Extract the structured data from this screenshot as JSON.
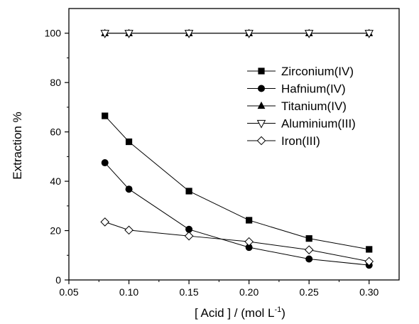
{
  "chart_data": {
    "type": "line",
    "title": "",
    "xlabel": "[ Acid ] / (mol L",
    "xlabel_sup": "-1",
    "xlabel_tail": ")",
    "ylabel": "Extraction %",
    "xlim": [
      0.05,
      0.325
    ],
    "ylim": [
      0,
      110
    ],
    "x_ticks": [
      0.05,
      0.1,
      0.15,
      0.2,
      0.25,
      0.3
    ],
    "x_tick_labels": [
      "0.05",
      "0.10",
      "0.15",
      "0.20",
      "0.25",
      "0.30"
    ],
    "y_ticks": [
      0,
      20,
      40,
      60,
      80,
      100
    ],
    "y_tick_labels": [
      "0",
      "20",
      "40",
      "60",
      "80",
      "100"
    ],
    "grid": false,
    "legend_position": "top-right",
    "series": [
      {
        "name": "Zirconium(IV)",
        "marker": "square-filled",
        "x": [
          0.08,
          0.1,
          0.15,
          0.2,
          0.25,
          0.3
        ],
        "y": [
          66.5,
          56,
          36,
          24.2,
          16.8,
          12.4
        ]
      },
      {
        "name": "Hafnium(IV)",
        "marker": "circle-filled",
        "x": [
          0.08,
          0.1,
          0.15,
          0.2,
          0.25,
          0.3
        ],
        "y": [
          47.5,
          36.8,
          20.5,
          13.2,
          8.5,
          6.0
        ]
      },
      {
        "name": "Titanium(IV)",
        "marker": "triangle-up-filled",
        "x": [
          0.08,
          0.1,
          0.15,
          0.2,
          0.25,
          0.3
        ],
        "y": [
          100,
          100,
          100,
          100,
          100,
          100
        ]
      },
      {
        "name": "Aluminium(III)",
        "marker": "triangle-down-open",
        "x": [
          0.08,
          0.1,
          0.15,
          0.2,
          0.25,
          0.3
        ],
        "y": [
          100,
          100,
          100,
          100,
          100,
          100
        ]
      },
      {
        "name": "Iron(III)",
        "marker": "diamond-open",
        "x": [
          0.08,
          0.1,
          0.15,
          0.2,
          0.25,
          0.3
        ],
        "y": [
          23.5,
          20.2,
          17.8,
          15.5,
          12.2,
          7.5
        ]
      }
    ]
  }
}
